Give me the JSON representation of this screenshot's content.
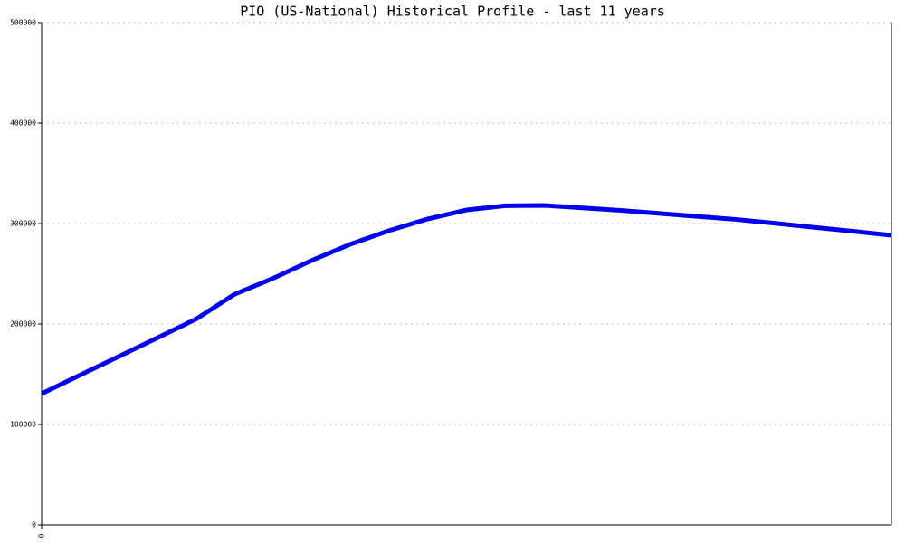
{
  "chart_data": {
    "type": "line",
    "title": "PIO (US-National) Historical Profile - last 11 years",
    "x": [
      0,
      1,
      2,
      3,
      4,
      5,
      6,
      7,
      8,
      9,
      10,
      11,
      12,
      13,
      14,
      15,
      16,
      17,
      18,
      19,
      20,
      21,
      22
    ],
    "series": [
      {
        "color": "#0000ee",
        "values": [
          130600,
          149200,
          167700,
          186300,
          204900,
          229700,
          245600,
          263400,
          279500,
          293000,
          304600,
          313500,
          317700,
          318000,
          315500,
          313100,
          310000,
          307000,
          304000,
          300200,
          296200,
          292300,
          288300
        ]
      }
    ],
    "xlim": [
      0,
      22
    ],
    "xticks": [
      0
    ],
    "ylim": [
      0,
      500000
    ],
    "yticks": [
      0,
      100000,
      200000,
      300000,
      400000,
      500000
    ],
    "grid": true
  }
}
